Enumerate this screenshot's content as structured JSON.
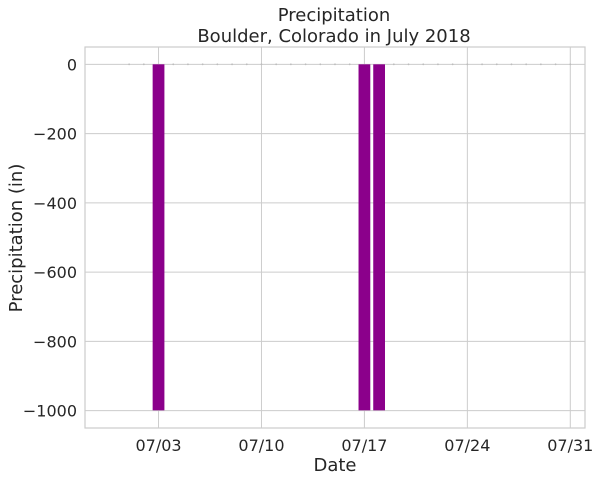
{
  "chart_data": {
    "type": "bar",
    "title": "Precipitation",
    "subtitle": "Boulder, Colorado in July 2018",
    "xlabel": "Date",
    "ylabel": "Precipitation (in)",
    "ylim": [
      -1050,
      50
    ],
    "xlim": [
      "2018-06-28",
      "2018-08-01"
    ],
    "yticks": [
      0,
      -200,
      -400,
      -600,
      -800,
      -1000
    ],
    "ytick_labels": [
      "0",
      "−200",
      "−400",
      "−600",
      "−800",
      "−1000"
    ],
    "xticks": [
      "2018-07-03",
      "2018-07-10",
      "2018-07-17",
      "2018-07-24",
      "2018-07-31"
    ],
    "xtick_labels": [
      "07/03",
      "07/10",
      "07/17",
      "07/24",
      "07/31"
    ],
    "x": [
      "2018-07-01",
      "2018-07-02",
      "2018-07-03",
      "2018-07-04",
      "2018-07-05",
      "2018-07-06",
      "2018-07-07",
      "2018-07-08",
      "2018-07-09",
      "2018-07-10",
      "2018-07-11",
      "2018-07-12",
      "2018-07-13",
      "2018-07-14",
      "2018-07-15",
      "2018-07-16",
      "2018-07-17",
      "2018-07-18",
      "2018-07-19",
      "2018-07-20",
      "2018-07-21",
      "2018-07-22",
      "2018-07-23",
      "2018-07-24",
      "2018-07-25",
      "2018-07-26",
      "2018-07-27",
      "2018-07-28",
      "2018-07-29",
      "2018-07-30",
      "2018-07-31"
    ],
    "values": [
      0,
      0,
      -999,
      0,
      0,
      0,
      0,
      0,
      0,
      0,
      0,
      0,
      0,
      0,
      0,
      0,
      -999,
      -999,
      0,
      0,
      0,
      0,
      0,
      0,
      0,
      0,
      0,
      0,
      0,
      0,
      0
    ],
    "bar_color": "#8b008b",
    "grid": true,
    "style": "whitegrid"
  }
}
